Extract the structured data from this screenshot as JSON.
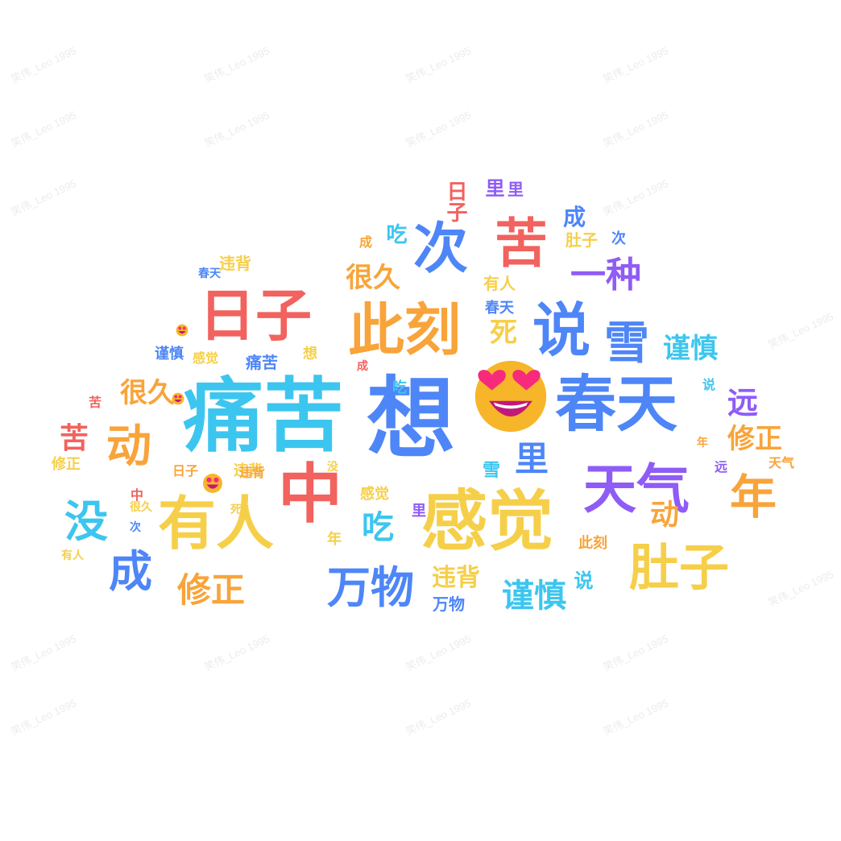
{
  "watermark": "笑伟_Leo 1995",
  "colors": {
    "blue": "#4e86f7",
    "cyan": "#3cc6ef",
    "yellow": "#f6cf4a",
    "orange": "#f8a43a",
    "red": "#f2625e",
    "purple": "#8f5cf6",
    "emoji_face": "#f7b52a",
    "emoji_eyes": "#f72a7c"
  },
  "words": {
    "w01": "痛苦",
    "w02": "想",
    "w03": "春天",
    "w04": "感觉",
    "w05": "中",
    "w06": "有人",
    "w07": "天气",
    "w08": "年",
    "w09": "肚子",
    "w10": "日子",
    "w11": "此刻",
    "w12": "说",
    "w13": "苦",
    "w14": "次",
    "w15": "雪",
    "w16": "一种",
    "w17": "没",
    "w18": "成",
    "w19": "万物",
    "w20": "动",
    "w21": "修正",
    "w22": "谨慎",
    "w23": "远",
    "w24": "里",
    "w25": "吃",
    "w26": "很久",
    "w27": "死",
    "w28": "违背",
    "w29": "谨慎",
    "w30": "修正",
    "w31": "很久",
    "w32": "苦",
    "w33": "动",
    "w34": "日子",
    "w35": "里",
    "w36": "成",
    "w37": "吃",
    "w38": "肚子",
    "w39": "违背",
    "w40": "春天",
    "w41": "有人",
    "w42": "感觉",
    "w43": "痛苦",
    "w44": "感觉",
    "w45": "违背",
    "w46": "万物",
    "w47": "说",
    "w48": "雪",
    "w49": "里",
    "w50": "吃",
    "w51": "年",
    "w52": "此刻",
    "w53": "修正",
    "w54": "远",
    "w55": "天气",
    "w56": "成",
    "w57": "说",
    "w58": "苦",
    "w59": "次",
    "w60": "很久",
    "w61": "谨慎",
    "w62": "春天",
    "w63": "有人",
    "w64": "日子",
    "w65": "违背",
    "w66": "中",
    "w67": "里",
    "w68": "想",
    "w69": "死",
    "w70": "没",
    "w71": "成",
    "w72": "年",
    "w73": "次"
  }
}
